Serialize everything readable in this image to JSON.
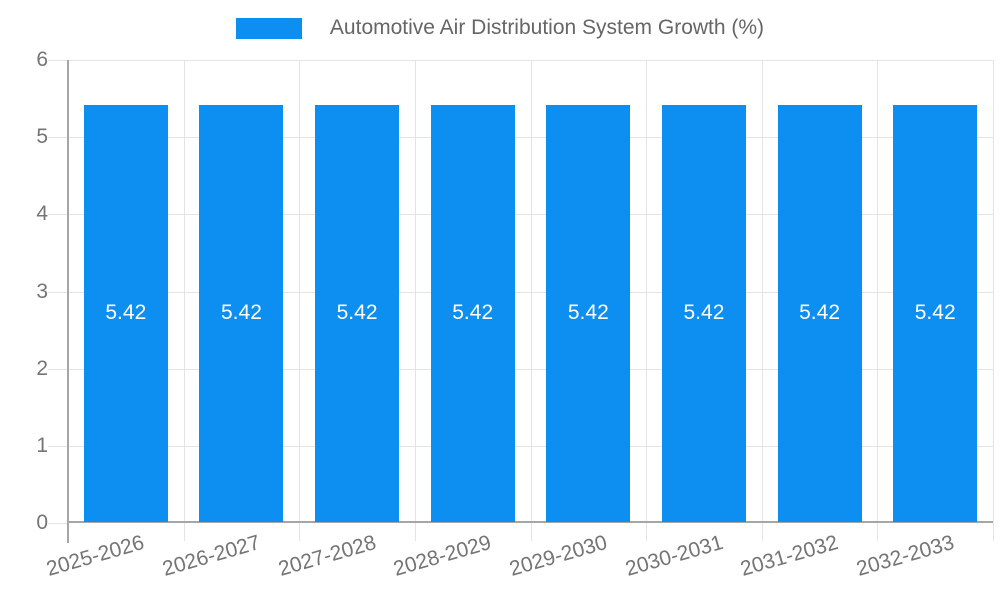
{
  "legend": {
    "title": "Automotive Air Distribution System Growth (%)"
  },
  "chart_data": {
    "type": "bar",
    "title": "Automotive Air Distribution System Growth (%)",
    "categories": [
      "2025-2026",
      "2026-2027",
      "2027-2028",
      "2028-2029",
      "2029-2030",
      "2030-2031",
      "2031-2032",
      "2032-2033"
    ],
    "values": [
      5.42,
      5.42,
      5.42,
      5.42,
      5.42,
      5.42,
      5.42,
      5.42
    ],
    "value_labels": [
      "5.42",
      "5.42",
      "5.42",
      "5.42",
      "5.42",
      "5.42",
      "5.42",
      "5.42"
    ],
    "xlabel": "",
    "ylabel": "",
    "ylim": [
      0,
      6
    ],
    "yticks": [
      0,
      1,
      2,
      3,
      4,
      5,
      6
    ],
    "grid": true,
    "legend_position": "top",
    "x_label_rotation_deg": -16,
    "colors": {
      "bar": "#0d8ff2",
      "grid": "#e4e4e4",
      "axis": "#a6a6a6",
      "tick_text": "#757575",
      "title_text": "#666666",
      "bar_label": "#ffffff",
      "background": "#ffffff"
    }
  }
}
